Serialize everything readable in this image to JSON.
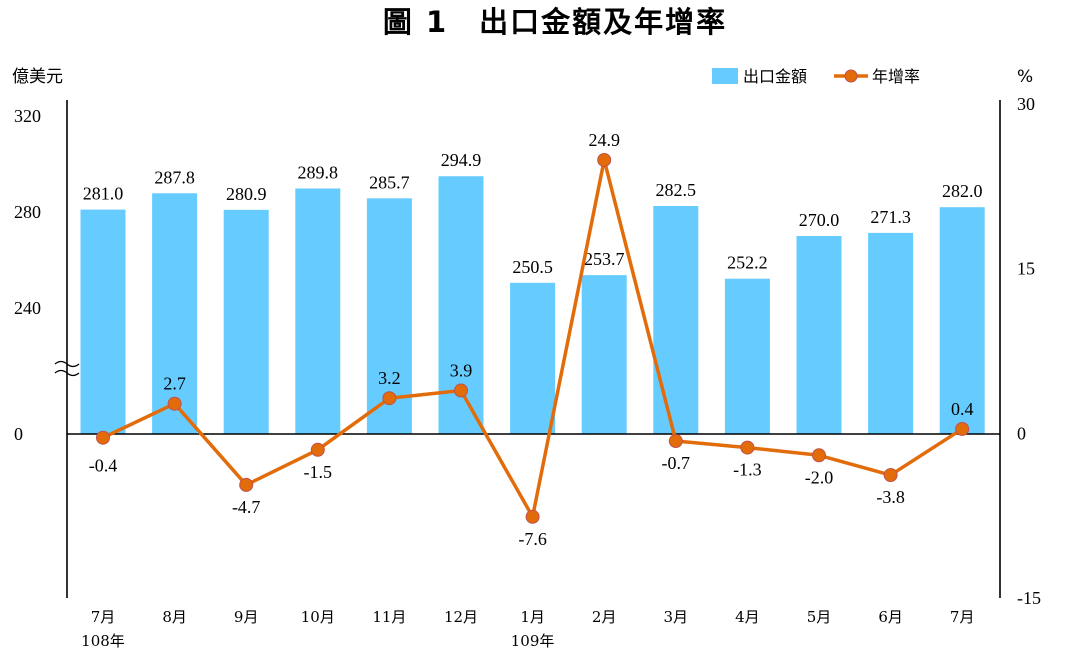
{
  "title": "圖 1　出口金額及年增率",
  "left_unit": "億美元",
  "right_unit": "%",
  "legend": {
    "bar_label": "出口金額",
    "line_label": "年增率"
  },
  "colors": {
    "bar": "#66ccff",
    "line": "#e36c0a",
    "marker": "#e36c0a",
    "marker_edge": "#c0504d"
  },
  "chart_data": {
    "type": "bar",
    "categories": [
      "7月",
      "8月",
      "9月",
      "10月",
      "11月",
      "12月",
      "1月",
      "2月",
      "3月",
      "4月",
      "5月",
      "6月",
      "7月"
    ],
    "year_labels": [
      "108年",
      "",
      "",
      "",
      "",
      "",
      "109年",
      "",
      "",
      "",
      "",
      "",
      ""
    ],
    "series": [
      {
        "name": "出口金額",
        "type": "bar",
        "axis": "left",
        "values": [
          281.0,
          287.8,
          280.9,
          289.8,
          285.7,
          294.9,
          250.5,
          253.7,
          282.5,
          252.2,
          270.0,
          271.3,
          282.0
        ]
      },
      {
        "name": "年增率",
        "type": "line",
        "axis": "right",
        "values": [
          -0.4,
          2.7,
          -4.7,
          -1.5,
          3.2,
          3.9,
          -7.6,
          24.9,
          -0.7,
          -1.3,
          -2.0,
          -3.8,
          0.4
        ]
      }
    ],
    "left_axis": {
      "ticks": [
        "320",
        "280",
        "240",
        "0"
      ],
      "broken": true
    },
    "right_axis": {
      "ticks": [
        30,
        15,
        0,
        -15
      ],
      "ylim": [
        -15,
        30
      ]
    },
    "legend_position": "top-right"
  }
}
